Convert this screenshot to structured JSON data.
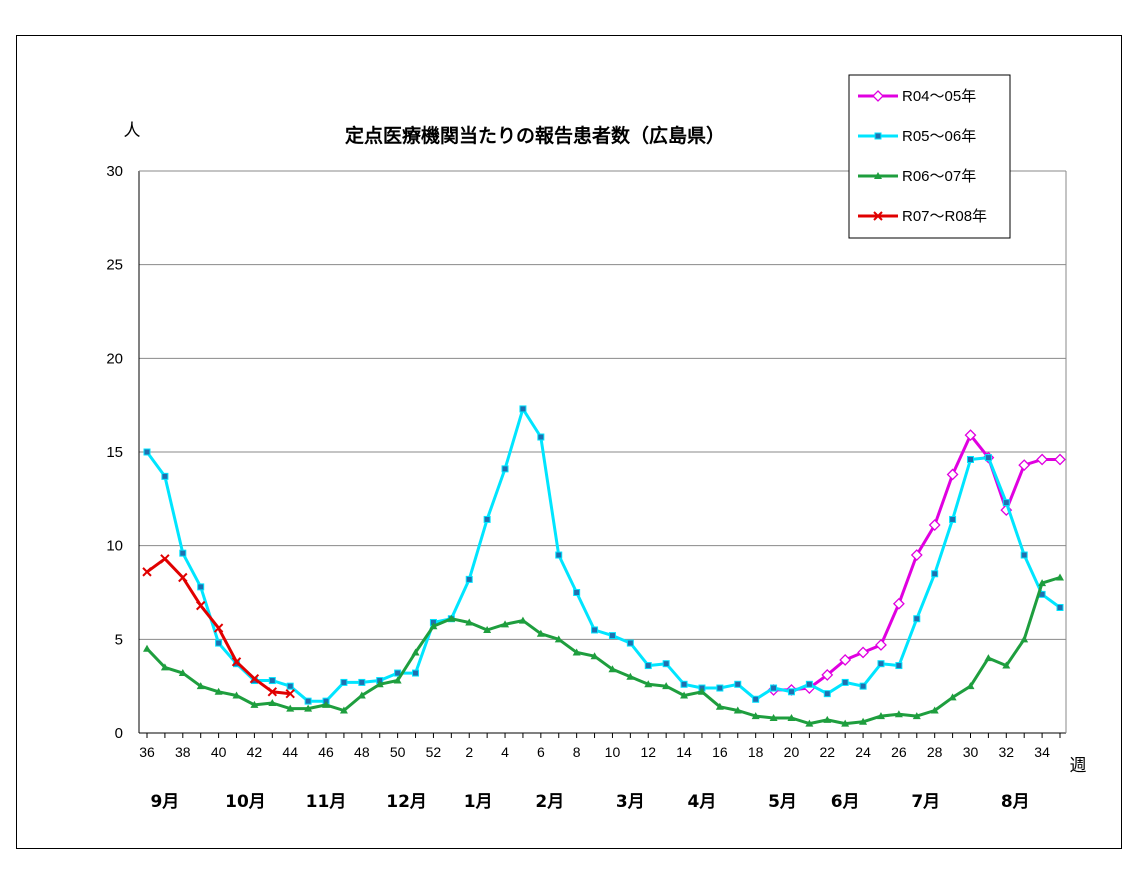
{
  "chart_data": {
    "type": "line",
    "title": "定点医療機関当たりの報告患者数（広島県）",
    "ylabel": "人",
    "xlabel": "週",
    "ylim": [
      0,
      30
    ],
    "y_ticks": [
      "0",
      "5",
      "10",
      "15",
      "20",
      "25",
      "30"
    ],
    "x_ticks": [
      "36",
      "38",
      "40",
      "42",
      "44",
      "46",
      "48",
      "50",
      "52",
      "2",
      "4",
      "6",
      "8",
      "10",
      "12",
      "14",
      "16",
      "18",
      "20",
      "22",
      "24",
      "26",
      "28",
      "30",
      "32",
      "34"
    ],
    "months": [
      "9月",
      "10月",
      "11月",
      "12月",
      "1月",
      "2月",
      "3月",
      "4月",
      "5月",
      "6月",
      "7月",
      "8月"
    ],
    "grid": true,
    "legend_position": "top-right",
    "weeks": [
      36,
      37,
      38,
      39,
      40,
      41,
      42,
      43,
      44,
      45,
      46,
      47,
      48,
      49,
      50,
      51,
      52,
      1,
      2,
      3,
      4,
      5,
      6,
      7,
      8,
      9,
      10,
      11,
      12,
      13,
      14,
      15,
      16,
      17,
      18,
      19,
      20,
      21,
      22,
      23,
      24,
      25,
      26,
      27,
      28,
      29,
      30,
      31,
      32,
      33,
      34,
      35
    ],
    "series": [
      {
        "name": "R04～05年",
        "color": "#E000E0",
        "marker": "diamond",
        "values": [
          null,
          null,
          null,
          null,
          null,
          null,
          null,
          null,
          null,
          null,
          null,
          null,
          null,
          null,
          null,
          null,
          null,
          null,
          null,
          null,
          null,
          null,
          null,
          null,
          null,
          null,
          null,
          null,
          null,
          null,
          null,
          null,
          null,
          null,
          null,
          2.3,
          2.3,
          2.4,
          3.1,
          3.9,
          4.3,
          4.7,
          6.9,
          9.5,
          11.1,
          13.8,
          15.9,
          14.7,
          11.9,
          14.3,
          14.6,
          14.6
        ]
      },
      {
        "name": "R05～06年",
        "color": "#00E5FF",
        "marker": "square",
        "values": [
          15.0,
          13.7,
          9.6,
          7.8,
          4.8,
          3.7,
          2.8,
          2.8,
          2.5,
          1.7,
          1.7,
          2.7,
          2.7,
          2.8,
          3.2,
          3.2,
          5.9,
          6.1,
          8.2,
          11.4,
          14.1,
          17.3,
          15.8,
          9.5,
          7.5,
          5.5,
          5.2,
          4.8,
          3.6,
          3.7,
          2.6,
          2.4,
          2.4,
          2.6,
          1.8,
          2.4,
          2.2,
          2.6,
          2.1,
          2.7,
          2.5,
          3.7,
          3.6,
          6.1,
          8.5,
          11.4,
          14.6,
          14.7,
          12.3,
          9.5,
          7.4,
          6.7
        ]
      },
      {
        "name": "R06～07年",
        "color": "#1E9E3E",
        "marker": "triangle",
        "values": [
          4.5,
          3.5,
          3.2,
          2.5,
          2.2,
          2.0,
          1.5,
          1.6,
          1.3,
          1.3,
          1.5,
          1.2,
          2.0,
          2.6,
          2.8,
          4.3,
          5.7,
          6.1,
          5.9,
          5.5,
          5.8,
          6.0,
          5.3,
          5.0,
          4.3,
          4.1,
          3.4,
          3.0,
          2.6,
          2.5,
          2.0,
          2.2,
          1.4,
          1.2,
          0.9,
          0.8,
          0.8,
          0.5,
          0.7,
          0.5,
          0.6,
          0.9,
          1.0,
          0.9,
          1.2,
          1.9,
          2.5,
          4.0,
          3.6,
          5.0,
          8.0,
          8.3
        ]
      },
      {
        "name": "R07～R08年",
        "color": "#E00000",
        "marker": "x",
        "values": [
          8.6,
          9.3,
          8.3,
          6.8,
          5.6,
          3.8,
          2.9,
          2.2,
          2.1,
          null,
          null,
          null,
          null,
          null,
          null,
          null,
          null,
          null,
          null,
          null,
          null,
          null,
          null,
          null,
          null,
          null,
          null,
          null,
          null,
          null,
          null,
          null,
          null,
          null,
          null,
          null,
          null,
          null,
          null,
          null,
          null,
          null,
          null,
          null,
          null,
          null,
          null,
          null,
          null,
          null,
          null,
          null
        ]
      }
    ]
  }
}
